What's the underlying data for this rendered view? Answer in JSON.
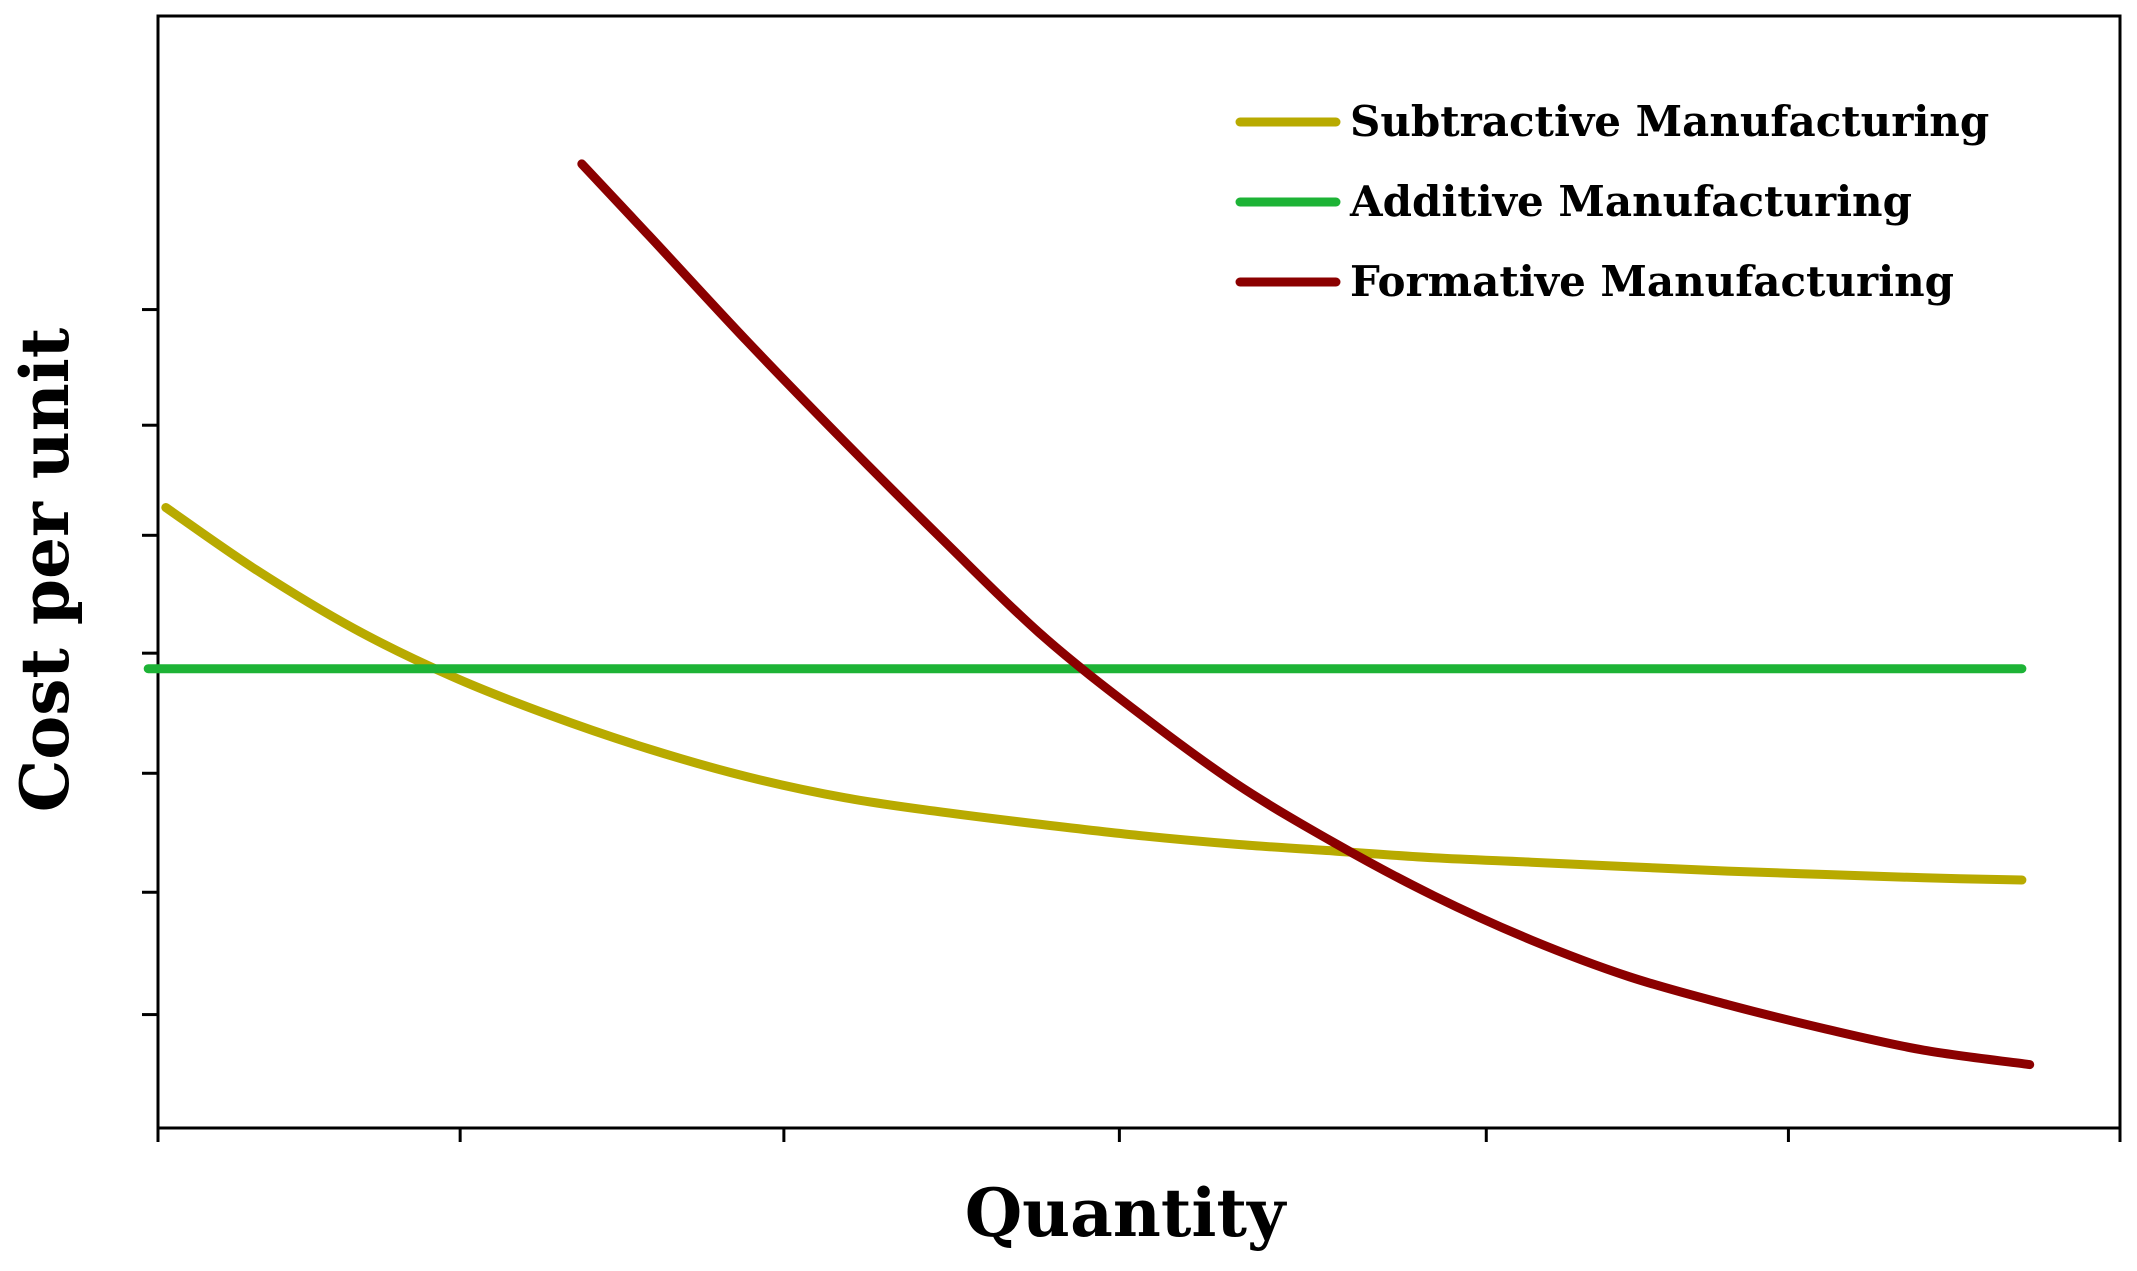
{
  "chart_data": {
    "type": "line",
    "title": "",
    "xlabel": "Quantity",
    "ylabel": "Cost per unit",
    "xlim": [
      0,
      100
    ],
    "ylim": [
      0,
      100
    ],
    "x_ticks": [
      0,
      15.4,
      31.9,
      49.0,
      67.7,
      83.1,
      100
    ],
    "y_ticks": [
      10.2,
      21.2,
      31.9,
      42.7,
      53.3,
      63.2,
      73.6
    ],
    "tick_labels_visible": false,
    "grid": false,
    "legend_position": "top-right",
    "series": [
      {
        "name": "Subtractive Manufacturing",
        "color": "#B8AA00",
        "x": [
          0.4,
          5,
          10,
          15,
          20,
          25,
          30,
          35,
          40,
          45,
          50,
          55,
          60,
          65,
          70,
          75,
          80,
          85,
          90,
          95
        ],
        "y": [
          55.8,
          50.2,
          44.9,
          40.6,
          37.1,
          34.1,
          31.6,
          29.7,
          28.4,
          27.3,
          26.3,
          25.5,
          24.9,
          24.3,
          23.9,
          23.5,
          23.1,
          22.8,
          22.5,
          22.3
        ]
      },
      {
        "name": "Additive Manufacturing",
        "color": "#1DB336",
        "x": [
          -0.5,
          95
        ],
        "y": [
          41.3,
          41.3
        ]
      },
      {
        "name": "Formative Manufacturing",
        "color": "#8B0000",
        "x": [
          21.6,
          25,
          30,
          35,
          40,
          45,
          50,
          55,
          60,
          65,
          70,
          75,
          80,
          85,
          90,
          95.4
        ],
        "y": [
          86.7,
          80.3,
          70.8,
          61.7,
          52.9,
          44.4,
          37.3,
          30.9,
          25.6,
          20.9,
          16.9,
          13.6,
          11.1,
          8.9,
          7.0,
          5.7
        ]
      }
    ]
  }
}
